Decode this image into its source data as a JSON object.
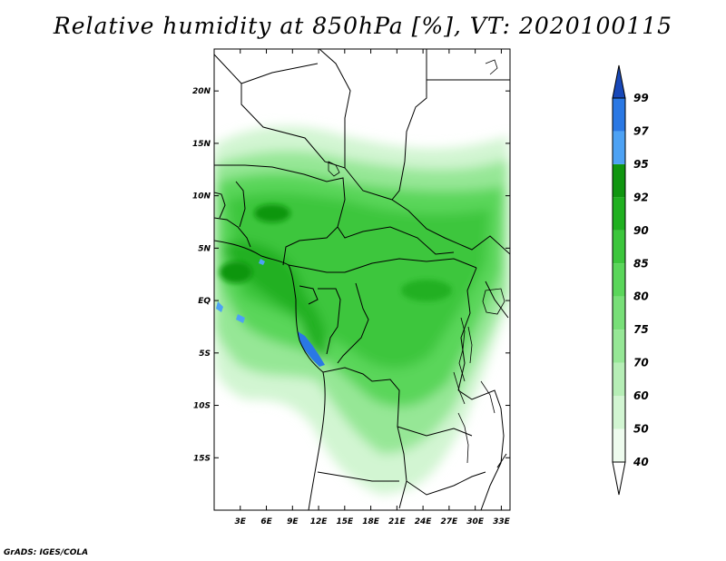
{
  "title": "Relative humidity at 850hPa [%], VT: 2020100115",
  "credit": "GrADS: IGES/COLA",
  "map": {
    "lon_range": [
      0,
      34
    ],
    "lat_range": [
      -20,
      24
    ],
    "lat_ticks": [
      {
        "value": 20,
        "label": "20N"
      },
      {
        "value": 15,
        "label": "15N"
      },
      {
        "value": 10,
        "label": "10N"
      },
      {
        "value": 5,
        "label": "5N"
      },
      {
        "value": 0,
        "label": "EQ"
      },
      {
        "value": -5,
        "label": "5S"
      },
      {
        "value": -10,
        "label": "10S"
      },
      {
        "value": -15,
        "label": "15S"
      }
    ],
    "lon_ticks": [
      {
        "value": 3,
        "label": "3E"
      },
      {
        "value": 6,
        "label": "6E"
      },
      {
        "value": 9,
        "label": "9E"
      },
      {
        "value": 12,
        "label": "12E"
      },
      {
        "value": 15,
        "label": "15E"
      },
      {
        "value": 18,
        "label": "18E"
      },
      {
        "value": 21,
        "label": "21E"
      },
      {
        "value": 24,
        "label": "24E"
      },
      {
        "value": 27,
        "label": "27E"
      },
      {
        "value": 30,
        "label": "30E"
      },
      {
        "value": 33,
        "label": "33E"
      }
    ]
  },
  "colorbar": {
    "levels": [
      {
        "label": "40",
        "color": "#eefbee"
      },
      {
        "label": "50",
        "color": "#d2f5d2"
      },
      {
        "label": "60",
        "color": "#b6eeb6"
      },
      {
        "label": "70",
        "color": "#96e796"
      },
      {
        "label": "75",
        "color": "#78df78"
      },
      {
        "label": "80",
        "color": "#5ad65a"
      },
      {
        "label": "85",
        "color": "#3cc63c"
      },
      {
        "label": "90",
        "color": "#20b020"
      },
      {
        "label": "92",
        "color": "#109610"
      },
      {
        "label": "95",
        "color": "#4da2f4"
      },
      {
        "label": "97",
        "color": "#2a78e4"
      },
      {
        "label": "99",
        "color": "#1850c0"
      }
    ],
    "low_color": "#ffffff",
    "high_color": "#1848b8"
  }
}
